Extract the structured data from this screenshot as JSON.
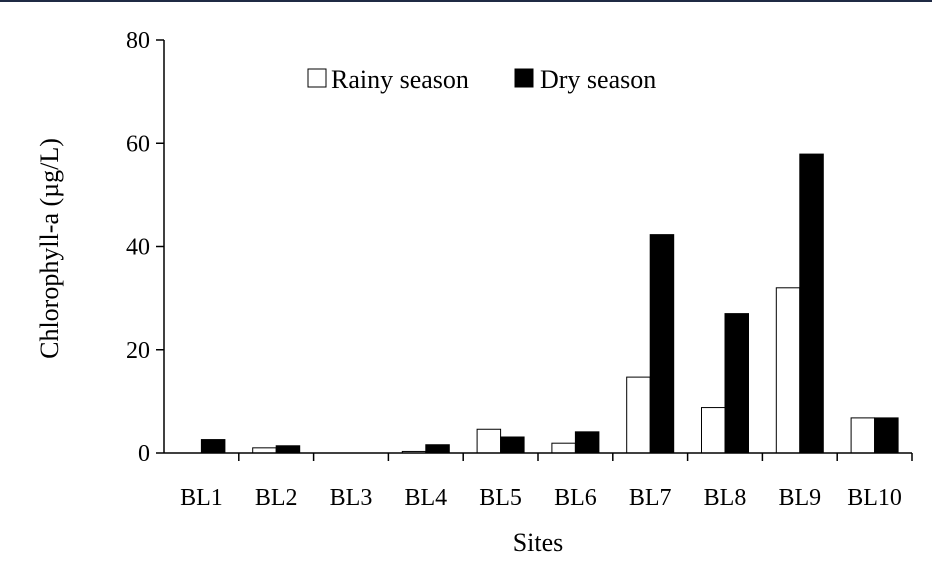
{
  "chart_data": {
    "type": "bar",
    "title": "",
    "xlabel": "Sites",
    "ylabel": "Chlorophyll-a (µg/L)",
    "ylim": [
      0,
      80
    ],
    "yticks": [
      0,
      20,
      40,
      60,
      80
    ],
    "grid": false,
    "legend_position": "top-center",
    "categories": [
      "BL1",
      "BL2",
      "BL3",
      "BL4",
      "BL5",
      "BL6",
      "BL7",
      "BL8",
      "BL9",
      "BL10"
    ],
    "series": [
      {
        "name": "Rainy season",
        "color": "#ffffff",
        "stroke": "#000000",
        "values": [
          0,
          1.0,
          0,
          0.3,
          4.6,
          1.9,
          14.7,
          8.8,
          32.0,
          6.8
        ]
      },
      {
        "name": "Dry season",
        "color": "#000000",
        "stroke": "#000000",
        "values": [
          2.6,
          1.4,
          0,
          1.6,
          3.1,
          4.1,
          42.3,
          27.0,
          57.9,
          6.8
        ]
      }
    ]
  }
}
